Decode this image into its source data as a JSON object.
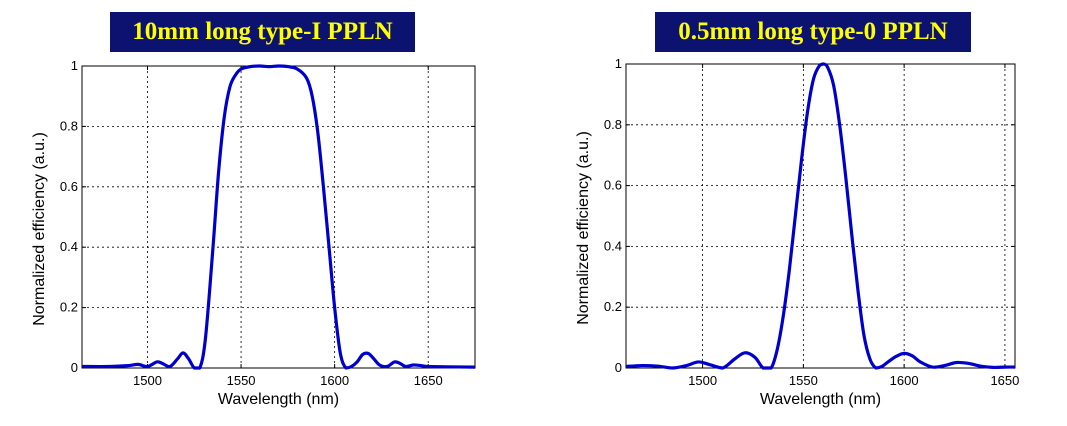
{
  "chart_data": [
    {
      "type": "line",
      "title": "10mm long type-I PPLN",
      "xlabel": "Wavelength (nm)",
      "ylabel": "Normalized efficiency (a.u.)",
      "xlim": [
        1465,
        1675
      ],
      "ylim": [
        0,
        1
      ],
      "xticks": [
        1500,
        1550,
        1600,
        1650
      ],
      "yticks": [
        0,
        0.2,
        0.4,
        0.6,
        0.8,
        1
      ],
      "ytick_labels": [
        "0",
        "0.2",
        "0.4",
        "0.6",
        "0.8",
        "1"
      ],
      "grid": true,
      "line_color": "#0000cc",
      "series": [
        {
          "x": [
            1465,
            1480,
            1490,
            1495,
            1500,
            1505,
            1508,
            1512,
            1516,
            1519,
            1522,
            1525,
            1528,
            1531,
            1535,
            1538,
            1541,
            1544,
            1547,
            1550,
            1555,
            1560,
            1565,
            1570,
            1575,
            1580,
            1585,
            1588,
            1591,
            1594,
            1597,
            1600,
            1603,
            1606,
            1609,
            1612,
            1615,
            1618,
            1621,
            1624,
            1628,
            1632,
            1635,
            1638,
            1642,
            1646,
            1650,
            1660,
            1675
          ],
          "y": [
            0.005,
            0.005,
            0.008,
            0.012,
            0.005,
            0.02,
            0.015,
            0.005,
            0.03,
            0.05,
            0.03,
            0.0,
            0.0,
            0.1,
            0.4,
            0.65,
            0.83,
            0.93,
            0.97,
            0.99,
            0.998,
            1.0,
            0.998,
            1.0,
            0.998,
            0.99,
            0.96,
            0.9,
            0.78,
            0.6,
            0.4,
            0.2,
            0.05,
            0.0,
            0.005,
            0.02,
            0.045,
            0.048,
            0.03,
            0.01,
            0.005,
            0.02,
            0.015,
            0.005,
            0.01,
            0.008,
            0.005,
            0.004,
            0.003
          ]
        }
      ]
    },
    {
      "type": "line",
      "title": "0.5mm long type-0 PPLN",
      "xlabel": "Wavelength (nm)",
      "ylabel": "Normalized efficiency (a.u.)",
      "xlim": [
        1462,
        1655
      ],
      "ylim": [
        0,
        1
      ],
      "xticks": [
        1500,
        1550,
        1600,
        1650
      ],
      "yticks": [
        0,
        0.2,
        0.4,
        0.6,
        0.8,
        1
      ],
      "ytick_labels": [
        "0",
        "0.2",
        "0.4",
        "0.6",
        "0.8",
        "1"
      ],
      "grid": true,
      "line_color": "#0000cc",
      "series": [
        {
          "x": [
            1462,
            1470,
            1478,
            1485,
            1492,
            1498,
            1504,
            1510,
            1516,
            1521,
            1526,
            1530,
            1534,
            1537,
            1540,
            1543,
            1546,
            1549,
            1552,
            1555,
            1558,
            1560,
            1562,
            1565,
            1568,
            1571,
            1574,
            1577,
            1580,
            1583,
            1586,
            1589,
            1592,
            1596,
            1600,
            1604,
            1608,
            1614,
            1620,
            1626,
            1632,
            1638,
            1644,
            1650,
            1655
          ],
          "y": [
            0.005,
            0.008,
            0.006,
            0.0,
            0.008,
            0.02,
            0.01,
            0.0,
            0.03,
            0.05,
            0.035,
            0.0,
            0.0,
            0.06,
            0.17,
            0.32,
            0.5,
            0.68,
            0.84,
            0.95,
            0.995,
            1.0,
            0.99,
            0.93,
            0.8,
            0.63,
            0.44,
            0.26,
            0.11,
            0.03,
            0.0,
            0.005,
            0.02,
            0.038,
            0.048,
            0.04,
            0.02,
            0.003,
            0.008,
            0.018,
            0.015,
            0.006,
            0.002,
            0.003,
            0.003
          ]
        }
      ]
    }
  ]
}
